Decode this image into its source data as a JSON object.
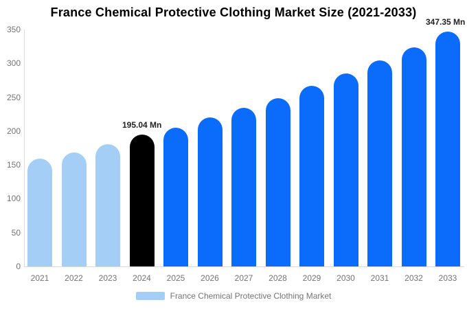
{
  "chart_data": {
    "type": "bar",
    "title": "France Chemical Protective Clothing Market Size (2021-2033)",
    "unit": "Mn",
    "categories": [
      "2021",
      "2022",
      "2023",
      "2024",
      "2025",
      "2026",
      "2027",
      "2028",
      "2029",
      "2030",
      "2031",
      "2032",
      "2033"
    ],
    "values": [
      159,
      168,
      181,
      195.04,
      205,
      220,
      234,
      249,
      267,
      285,
      304,
      324,
      347.35
    ],
    "bar_colors": [
      "#A5CEF7",
      "#A5CEF7",
      "#A5CEF7",
      "#000000",
      "#0B6CFB",
      "#0B6CFB",
      "#0B6CFB",
      "#0B6CFB",
      "#0B6CFB",
      "#0B6CFB",
      "#0B6CFB",
      "#0B6CFB",
      "#0B6CFB"
    ],
    "ylim": [
      0,
      350
    ],
    "yticks": [
      0,
      50,
      100,
      150,
      200,
      250,
      300,
      350
    ],
    "grid": false,
    "legend_position": "bottom",
    "legend": [
      {
        "label": "France Chemical Protective Clothing Market",
        "color": "#A5CEF7"
      }
    ],
    "annotations": [
      {
        "category": "2024",
        "text": "195.04 Mn"
      },
      {
        "category": "2033",
        "text": "347.35 Mn"
      }
    ],
    "styles": {
      "title_color": "#000000",
      "axis_text_color": "#737373",
      "axis_line_color": "#D9D9D9",
      "annotation_color": "#222222",
      "legend_text_color": "#737373",
      "background": "#FFFFFF"
    }
  }
}
